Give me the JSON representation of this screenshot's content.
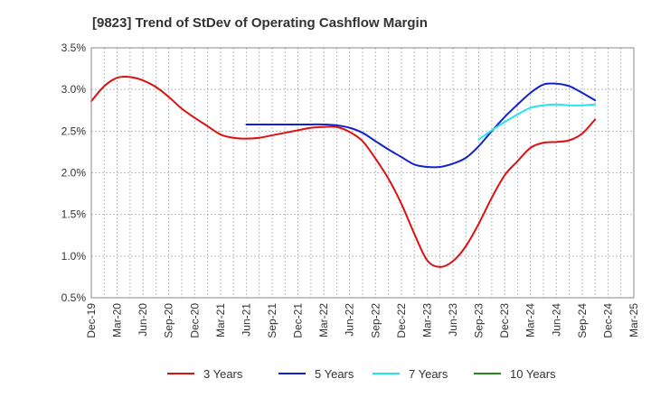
{
  "chart_data": {
    "type": "line",
    "title": "[9823]  Trend of StDev of Operating Cashflow Margin",
    "xlabel": "",
    "ylabel": "",
    "ylim": [
      0.5,
      3.5
    ],
    "y_ticks": [
      {
        "v": 0.5,
        "label": "0.5%"
      },
      {
        "v": 1.0,
        "label": "1.0%"
      },
      {
        "v": 1.5,
        "label": "1.5%"
      },
      {
        "v": 2.0,
        "label": "2.0%"
      },
      {
        "v": 2.5,
        "label": "2.5%"
      },
      {
        "v": 3.0,
        "label": "3.0%"
      },
      {
        "v": 3.5,
        "label": "3.5%"
      }
    ],
    "x_labels": [
      "Dec-19",
      "Mar-20",
      "Jun-20",
      "Sep-20",
      "Dec-20",
      "Mar-21",
      "Jun-21",
      "Sep-21",
      "Dec-21",
      "Mar-22",
      "Jun-22",
      "Sep-22",
      "Dec-22",
      "Mar-23",
      "Jun-23",
      "Sep-23",
      "Dec-23",
      "Mar-24",
      "Jun-24",
      "Sep-24",
      "Dec-24",
      "Mar-25"
    ],
    "grid": true,
    "legend_position": "bottom",
    "series": [
      {
        "name": "3 Years",
        "color": "#dd1111",
        "points": [
          [
            0,
            2.86
          ],
          [
            1,
            3.04
          ],
          [
            2,
            3.14
          ],
          [
            3,
            3.15
          ],
          [
            4,
            3.11
          ],
          [
            5,
            3.03
          ],
          [
            6,
            2.91
          ],
          [
            7,
            2.77
          ],
          [
            8,
            2.66
          ],
          [
            9,
            2.56
          ],
          [
            10,
            2.46
          ],
          [
            11,
            2.42
          ],
          [
            12,
            2.41
          ],
          [
            13,
            2.42
          ],
          [
            14,
            2.45
          ],
          [
            15,
            2.48
          ],
          [
            16,
            2.51
          ],
          [
            17,
            2.54
          ],
          [
            18,
            2.55
          ],
          [
            19,
            2.55
          ],
          [
            20,
            2.49
          ],
          [
            21,
            2.38
          ],
          [
            22,
            2.17
          ],
          [
            23,
            1.93
          ],
          [
            24,
            1.63
          ],
          [
            25,
            1.27
          ],
          [
            26,
            0.95
          ],
          [
            27,
            0.87
          ],
          [
            28,
            0.94
          ],
          [
            29,
            1.12
          ],
          [
            30,
            1.39
          ],
          [
            31,
            1.7
          ],
          [
            32,
            1.97
          ],
          [
            33,
            2.14
          ],
          [
            34,
            2.3
          ],
          [
            35,
            2.36
          ],
          [
            36,
            2.37
          ],
          [
            37,
            2.39
          ],
          [
            38,
            2.47
          ],
          [
            39,
            2.64
          ]
        ]
      },
      {
        "name": "5 Years",
        "color": "#1122cc",
        "points": [
          [
            12,
            2.58
          ],
          [
            13,
            2.58
          ],
          [
            14,
            2.58
          ],
          [
            15,
            2.58
          ],
          [
            16,
            2.58
          ],
          [
            17,
            2.58
          ],
          [
            18,
            2.58
          ],
          [
            19,
            2.57
          ],
          [
            20,
            2.54
          ],
          [
            21,
            2.48
          ],
          [
            22,
            2.38
          ],
          [
            23,
            2.28
          ],
          [
            24,
            2.19
          ],
          [
            25,
            2.1
          ],
          [
            26,
            2.07
          ],
          [
            27,
            2.07
          ],
          [
            28,
            2.11
          ],
          [
            29,
            2.18
          ],
          [
            30,
            2.32
          ],
          [
            31,
            2.5
          ],
          [
            32,
            2.67
          ],
          [
            33,
            2.82
          ],
          [
            34,
            2.96
          ],
          [
            35,
            3.06
          ],
          [
            36,
            3.07
          ],
          [
            37,
            3.04
          ],
          [
            38,
            2.96
          ],
          [
            39,
            2.87
          ]
        ]
      },
      {
        "name": "7 Years",
        "color": "#22e5ee",
        "points": [
          [
            30,
            2.4
          ],
          [
            31,
            2.51
          ],
          [
            32,
            2.61
          ],
          [
            33,
            2.7
          ],
          [
            34,
            2.78
          ],
          [
            35,
            2.81
          ],
          [
            36,
            2.82
          ],
          [
            37,
            2.81
          ],
          [
            38,
            2.81
          ],
          [
            39,
            2.82
          ]
        ]
      },
      {
        "name": "10 Years",
        "color": "#228822",
        "points": []
      }
    ]
  }
}
